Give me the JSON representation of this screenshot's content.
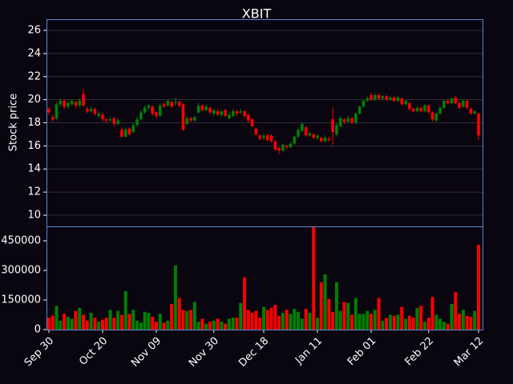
{
  "chart_data": {
    "type": "candlestick",
    "title": "XBIT",
    "ylabel": "Stock price",
    "up_color": "#008000",
    "down_color": "#ff0000",
    "grid": true,
    "ylim": [
      9.03,
      26.97
    ],
    "yticks": [
      10,
      12,
      14,
      16,
      18,
      20,
      22,
      24,
      26
    ],
    "y2lim": [
      0,
      523000
    ],
    "y2ticks": [
      0,
      150000,
      300000,
      450000
    ],
    "categories": [
      "Sep 30",
      null,
      null,
      null,
      null,
      null,
      null,
      null,
      null,
      null,
      null,
      null,
      null,
      null,
      "Oct 20",
      null,
      null,
      null,
      null,
      null,
      null,
      null,
      null,
      null,
      null,
      null,
      null,
      null,
      "Nov 09",
      null,
      null,
      null,
      null,
      null,
      null,
      null,
      null,
      null,
      null,
      null,
      null,
      null,
      null,
      "Nov 30",
      null,
      null,
      null,
      null,
      null,
      null,
      null,
      null,
      null,
      null,
      null,
      null,
      "Dec 18",
      null,
      null,
      null,
      null,
      null,
      null,
      null,
      null,
      null,
      null,
      null,
      null,
      null,
      "Jan 11",
      null,
      null,
      null,
      null,
      null,
      null,
      null,
      null,
      null,
      null,
      null,
      null,
      null,
      "Feb 01",
      null,
      null,
      null,
      null,
      null,
      null,
      null,
      null,
      null,
      null,
      null,
      null,
      null,
      null,
      "Feb 22",
      null,
      null,
      null,
      null,
      null,
      null,
      null,
      null,
      null,
      null,
      null,
      null,
      "Mar 12"
    ],
    "open": [
      19.2,
      18.5,
      18.4,
      19.6,
      19.9,
      19.4,
      19.6,
      19.8,
      19.5,
      20.5,
      19.2,
      19.0,
      19.2,
      18.6,
      18.7,
      18.3,
      18.2,
      18.4,
      17.9,
      17.4,
      16.8,
      17.5,
      17.2,
      17.8,
      18.3,
      18.9,
      19.3,
      19.4,
      18.9,
      18.6,
      19.6,
      19.5,
      19.8,
      19.7,
      19.8,
      19.6,
      17.9,
      18.4,
      18.2,
      18.9,
      19.5,
      19.1,
      19.3,
      18.8,
      19.0,
      18.7,
      19.1,
      18.4,
      18.6,
      19.0,
      18.9,
      19.0,
      18.7,
      18.3,
      17.5,
      16.9,
      16.7,
      16.9,
      16.9,
      16.4,
      15.8,
      15.6,
      16.0,
      15.9,
      16.2,
      16.8,
      17.3,
      17.6,
      16.9,
      17.0,
      16.7,
      16.7,
      16.4,
      16.6,
      18.3,
      17.0,
      17.7,
      18.3,
      18.1,
      18.4,
      18.0,
      18.8,
      19.4,
      19.9,
      20.4,
      20.0,
      20.4,
      20.1,
      20.3,
      20.0,
      20.2,
      19.9,
      20.1,
      19.6,
      19.7,
      19.2,
      19.0,
      19.3,
      19.0,
      19.5,
      18.9,
      18.2,
      18.8,
      19.3,
      19.9,
      19.7,
      20.2,
      19.7,
      19.4,
      19.9,
      19.2,
      18.8,
      18.8
    ],
    "high": [
      19.4,
      18.7,
      19.8,
      20.1,
      20.0,
      19.9,
      20.0,
      19.9,
      20.1,
      20.9,
      19.4,
      19.4,
      19.3,
      19.0,
      18.9,
      18.4,
      18.5,
      18.5,
      18.4,
      17.6,
      17.6,
      17.6,
      18.0,
      18.5,
      19.1,
      19.5,
      19.6,
      19.5,
      19.0,
      19.7,
      19.8,
      20.0,
      19.9,
      20.2,
      19.9,
      19.7,
      18.6,
      18.5,
      18.6,
      19.7,
      19.6,
      19.6,
      19.4,
      19.2,
      19.2,
      19.1,
      19.2,
      18.9,
      19.2,
      19.1,
      19.2,
      19.1,
      18.8,
      18.4,
      17.6,
      17.0,
      17.0,
      17.0,
      17.0,
      16.5,
      15.9,
      16.2,
      16.1,
      16.3,
      16.9,
      17.5,
      18.0,
      17.7,
      17.2,
      17.1,
      17.0,
      16.8,
      16.9,
      16.8,
      19.3,
      18.0,
      18.6,
      18.4,
      18.6,
      18.5,
      18.9,
      19.5,
      20.0,
      20.3,
      20.6,
      20.5,
      20.5,
      20.4,
      20.4,
      20.3,
      20.3,
      20.3,
      20.2,
      20.0,
      19.8,
      19.3,
      19.4,
      19.4,
      19.6,
      19.6,
      19.0,
      18.9,
      19.4,
      20.0,
      20.0,
      20.2,
      20.3,
      19.8,
      20.0,
      20.0,
      19.3,
      19.1,
      18.9
    ],
    "low": [
      18.7,
      18.1,
      18.2,
      19.4,
      19.2,
      19.2,
      19.5,
      19.3,
      19.4,
      19.4,
      18.8,
      18.9,
      18.6,
      18.4,
      18.1,
      18.0,
      18.1,
      17.7,
      17.8,
      16.7,
      16.7,
      16.9,
      17.1,
      17.7,
      18.2,
      18.8,
      19.1,
      18.6,
      18.4,
      18.5,
      19.3,
      19.4,
      19.3,
      19.5,
      19.3,
      17.3,
      17.8,
      18.0,
      18.1,
      18.8,
      19.0,
      19.0,
      18.8,
      18.6,
      18.6,
      18.5,
      18.5,
      18.3,
      18.5,
      18.6,
      18.8,
      18.4,
      18.0,
      17.6,
      16.9,
      16.5,
      16.5,
      16.4,
      16.3,
      15.6,
      15.3,
      15.5,
      15.7,
      15.8,
      16.1,
      16.7,
      17.2,
      16.8,
      16.8,
      16.6,
      16.5,
      16.3,
      16.3,
      16.4,
      16.1,
      16.8,
      17.6,
      17.9,
      18.0,
      17.9,
      17.9,
      18.7,
      19.3,
      19.8,
      19.9,
      19.9,
      20.0,
      20.0,
      19.9,
      19.9,
      19.8,
      19.8,
      19.5,
      19.5,
      19.1,
      18.9,
      18.9,
      18.9,
      18.9,
      18.8,
      18.1,
      18.1,
      18.7,
      19.2,
      19.6,
      19.6,
      19.6,
      19.2,
      19.3,
      19.2,
      18.7,
      18.7,
      16.5
    ],
    "close": [
      18.9,
      18.3,
      19.6,
      19.9,
      19.4,
      19.7,
      19.9,
      19.5,
      19.9,
      19.5,
      19.0,
      19.2,
      18.8,
      18.8,
      18.3,
      18.2,
      18.3,
      17.9,
      18.2,
      16.8,
      17.4,
      17.0,
      17.8,
      18.3,
      18.9,
      19.3,
      19.5,
      18.8,
      18.6,
      19.5,
      19.4,
      19.9,
      19.4,
      19.8,
      19.5,
      17.4,
      18.4,
      18.2,
      18.5,
      19.5,
      19.1,
      19.4,
      18.9,
      19.1,
      18.7,
      19.0,
      18.6,
      18.7,
      19.0,
      18.8,
      19.0,
      18.6,
      18.2,
      17.7,
      17.0,
      16.6,
      16.9,
      16.5,
      16.4,
      15.7,
      15.6,
      16.1,
      15.9,
      16.2,
      16.8,
      17.4,
      17.9,
      16.9,
      17.1,
      16.7,
      16.9,
      16.4,
      16.7,
      16.5,
      17.2,
      17.8,
      18.4,
      18.1,
      18.4,
      18.0,
      18.8,
      19.4,
      19.9,
      20.1,
      20.0,
      20.4,
      20.1,
      20.3,
      20.0,
      20.2,
      19.9,
      20.2,
      19.6,
      19.9,
      19.2,
      19.0,
      19.3,
      19.0,
      19.5,
      18.9,
      18.3,
      18.8,
      19.3,
      19.9,
      19.7,
      20.1,
      19.7,
      19.3,
      19.9,
      19.3,
      18.8,
      19.0,
      16.9
    ],
    "volume": [
      60000,
      70000,
      120000,
      45000,
      80000,
      65000,
      55000,
      95000,
      110000,
      75000,
      45000,
      85000,
      60000,
      40000,
      50000,
      60000,
      100000,
      60000,
      95000,
      75000,
      195000,
      80000,
      100000,
      45000,
      35000,
      90000,
      85000,
      65000,
      40000,
      80000,
      35000,
      45000,
      130000,
      325000,
      160000,
      100000,
      95000,
      100000,
      140000,
      40000,
      55000,
      30000,
      40000,
      45000,
      55000,
      40000,
      30000,
      55000,
      60000,
      60000,
      135000,
      265000,
      100000,
      85000,
      95000,
      60000,
      115000,
      100000,
      110000,
      125000,
      70000,
      85000,
      100000,
      80000,
      105000,
      90000,
      55000,
      105000,
      85000,
      520000,
      60000,
      240000,
      280000,
      155000,
      90000,
      240000,
      95000,
      140000,
      135000,
      75000,
      160000,
      80000,
      80000,
      95000,
      80000,
      100000,
      160000,
      45000,
      60000,
      75000,
      70000,
      75000,
      115000,
      55000,
      70000,
      60000,
      110000,
      120000,
      40000,
      60000,
      165000,
      75000,
      55000,
      40000,
      30000,
      130000,
      190000,
      80000,
      100000,
      70000,
      65000,
      95000,
      430000
    ]
  }
}
